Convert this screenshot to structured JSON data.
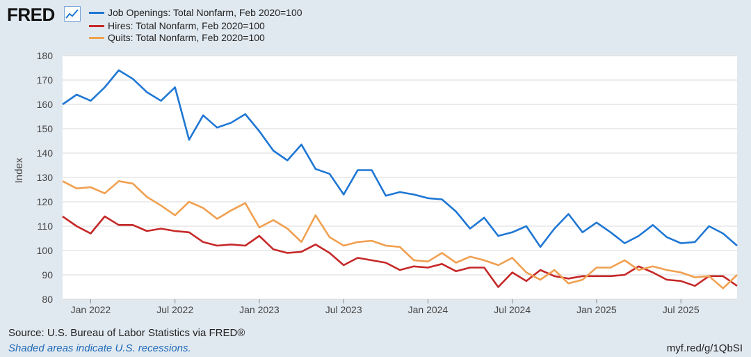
{
  "brand": {
    "logo_text": "FRED"
  },
  "chart_data": {
    "type": "line",
    "title": "",
    "xlabel": "",
    "ylabel": "Index",
    "ylim": [
      80,
      180
    ],
    "yticks": [
      80,
      90,
      100,
      110,
      120,
      130,
      140,
      150,
      160,
      170,
      180
    ],
    "xlim": [
      "2021-11",
      "2025-10"
    ],
    "xticks": [
      {
        "date": "2022-01",
        "label": "Jan 2022"
      },
      {
        "date": "2022-07",
        "label": "Jul 2022"
      },
      {
        "date": "2023-01",
        "label": "Jan 2023"
      },
      {
        "date": "2023-07",
        "label": "Jul 2023"
      },
      {
        "date": "2024-01",
        "label": "Jan 2024"
      },
      {
        "date": "2024-07",
        "label": "Jul 2024"
      },
      {
        "date": "2025-01",
        "label": "Jan 2025"
      },
      {
        "date": "2025-07",
        "label": "Jul 2025"
      }
    ],
    "grid": true,
    "start_month": "2021-11",
    "series": [
      {
        "name": "Job Openings: Total Nonfarm, Feb 2020=100",
        "color": "#1f77d4",
        "values": [
          160,
          164,
          161.5,
          167,
          174,
          170.5,
          165,
          161.5,
          167,
          145.5,
          155.5,
          150.5,
          152.5,
          156,
          149,
          141,
          137,
          143.5,
          133.5,
          131.5,
          123,
          133,
          133,
          122.5,
          124,
          123,
          121.5,
          121,
          116,
          109,
          113.5,
          106,
          107.5,
          110,
          101.5,
          109,
          115,
          107.5,
          111.5,
          107.5,
          103,
          106,
          110.5,
          105.5,
          103,
          103.5,
          110,
          107,
          102
        ]
      },
      {
        "name": "Hires: Total Nonfarm, Feb 2020=100",
        "color": "#c62828",
        "values": [
          114,
          110,
          107,
          114,
          110.5,
          110.5,
          108,
          109,
          108,
          107.5,
          103.5,
          102,
          102.5,
          102,
          106,
          100.5,
          99,
          99.5,
          102.5,
          99,
          94,
          97,
          96,
          95,
          92,
          93.5,
          93,
          94.5,
          91.5,
          93,
          93,
          85,
          91,
          87.5,
          92,
          89.5,
          88.5,
          89.5,
          89.5,
          89.5,
          90,
          93.5,
          91,
          88,
          87.5,
          85.5,
          89.5,
          89.5,
          85.5
        ]
      },
      {
        "name": "Quits: Total Nonfarm, Feb 2020=100",
        "color": "#f0a050",
        "values": [
          128.5,
          125.5,
          126,
          123.5,
          128.5,
          127.5,
          122,
          118.5,
          114.5,
          120,
          117.5,
          113,
          116.5,
          119.5,
          109.5,
          112.5,
          109,
          103.5,
          114.5,
          105.5,
          102,
          103.5,
          104,
          102,
          101.5,
          96,
          95.5,
          99,
          95,
          97.5,
          96,
          94,
          97,
          91,
          88,
          92,
          86.5,
          88,
          93,
          93,
          96,
          92,
          93.5,
          92,
          91,
          89,
          89.5,
          84.5,
          90
        ]
      }
    ]
  },
  "footer": {
    "source": "Source: U.S. Bureau of Labor Statistics via FRED®",
    "recession_note": "Shaded areas indicate U.S. recessions.",
    "url": "myf.red/g/1QbSI"
  }
}
